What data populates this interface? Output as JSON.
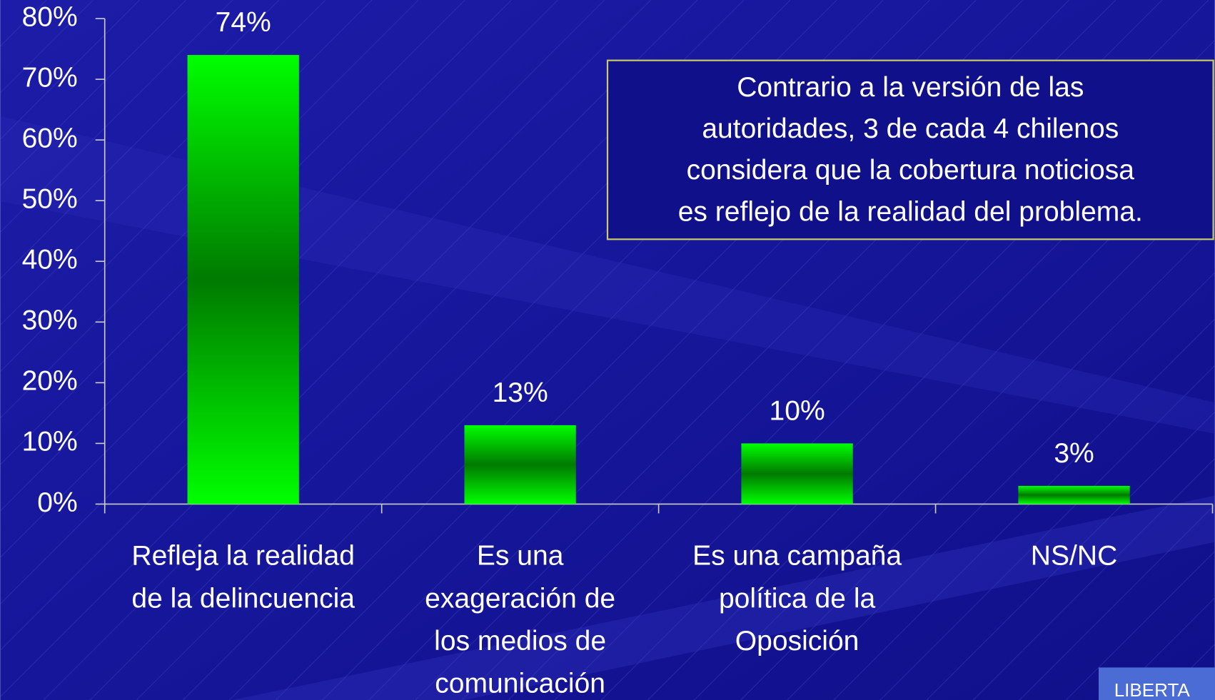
{
  "chart_data": {
    "type": "bar",
    "categories": [
      [
        "Refleja la realidad",
        "de la delincuencia"
      ],
      [
        "Es una",
        "exageración de",
        "los medios de",
        "comunicación"
      ],
      [
        "Es una campaña",
        "política de la",
        "Oposición"
      ],
      [
        "NS/NC"
      ]
    ],
    "values": [
      74,
      13,
      10,
      3
    ],
    "value_labels": [
      "74%",
      "13%",
      "10%",
      "3%"
    ],
    "color": "#00ff00",
    "ylim": [
      0,
      80
    ],
    "yticks": [
      {
        "value": 0,
        "label": "0%"
      },
      {
        "value": 10,
        "label": "10%"
      },
      {
        "value": 20,
        "label": "20%"
      },
      {
        "value": 30,
        "label": "30%"
      },
      {
        "value": 40,
        "label": "40%"
      },
      {
        "value": 50,
        "label": "50%"
      },
      {
        "value": 60,
        "label": "60%"
      },
      {
        "value": 70,
        "label": "70%"
      },
      {
        "value": 80,
        "label": "80%"
      }
    ],
    "annotation": [
      "Contrario a la versión de las",
      "autoridades, 3 de cada 4 chilenos",
      "considera que la cobertura noticiosa",
      "es reflejo de la realidad del problema."
    ],
    "footer_logo": "LIBERTA"
  }
}
